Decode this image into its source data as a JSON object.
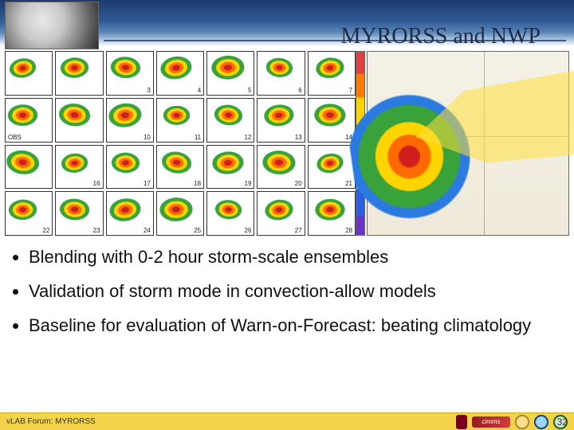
{
  "header": {
    "title": "MYRORSS and NWP",
    "title_fontsize": 28,
    "title_font": "Garamond",
    "band_gradient": [
      "#1d3b6b",
      "#305a94",
      "#5b86b8",
      "#a9c2dd",
      "#ffffff"
    ]
  },
  "ensemble_panels": {
    "type": "small-multiples",
    "rows": 4,
    "cols": 7,
    "panel_border": "#333333",
    "obs_label": "OBS",
    "numbers": [
      "",
      "",
      "3",
      "4",
      "5",
      "6",
      "7",
      "",
      "",
      "10",
      "11",
      "12",
      "13",
      "14",
      "",
      "16",
      "17",
      "18",
      "19",
      "20",
      "21",
      "22",
      "23",
      "24",
      "25",
      "26",
      "27",
      "28"
    ],
    "reflectivity_palette": [
      "#c92020",
      "#ff6a00",
      "#ffd400",
      "#39a23b"
    ],
    "label_fontsize": 8
  },
  "colorbar": {
    "colors": [
      "#e04040",
      "#ff7a00",
      "#ffd400",
      "#39a23b",
      "#36c3e6",
      "#2a5fe0",
      "#6a32c8"
    ]
  },
  "right_map": {
    "type": "map-overlay",
    "base_bg": [
      "#f4f1e6",
      "#efeadb"
    ],
    "road_color": "#b8b097",
    "radar_palette": [
      "#d11f1f",
      "#ff6a00",
      "#ffd400",
      "#39a23b",
      "#2a7ae0"
    ],
    "warning_cone_color": "rgba(255,224,60,0.55)"
  },
  "bullets": [
    "Blending with 0-2 hour storm-scale ensembles",
    "Validation of storm mode in convection-allow models",
    "Baseline for evaluation of Warn-on-Forecast: beating climatology"
  ],
  "footer": {
    "left_text": "vLAB Forum: MYRORSS",
    "page_number": "32",
    "bar_color": "#f2d34a",
    "logos": {
      "ou_color": "#7a0019",
      "cimms_text": "cimms",
      "cimms_bg": [
        "#9a1b1e",
        "#d23c3c"
      ]
    }
  }
}
